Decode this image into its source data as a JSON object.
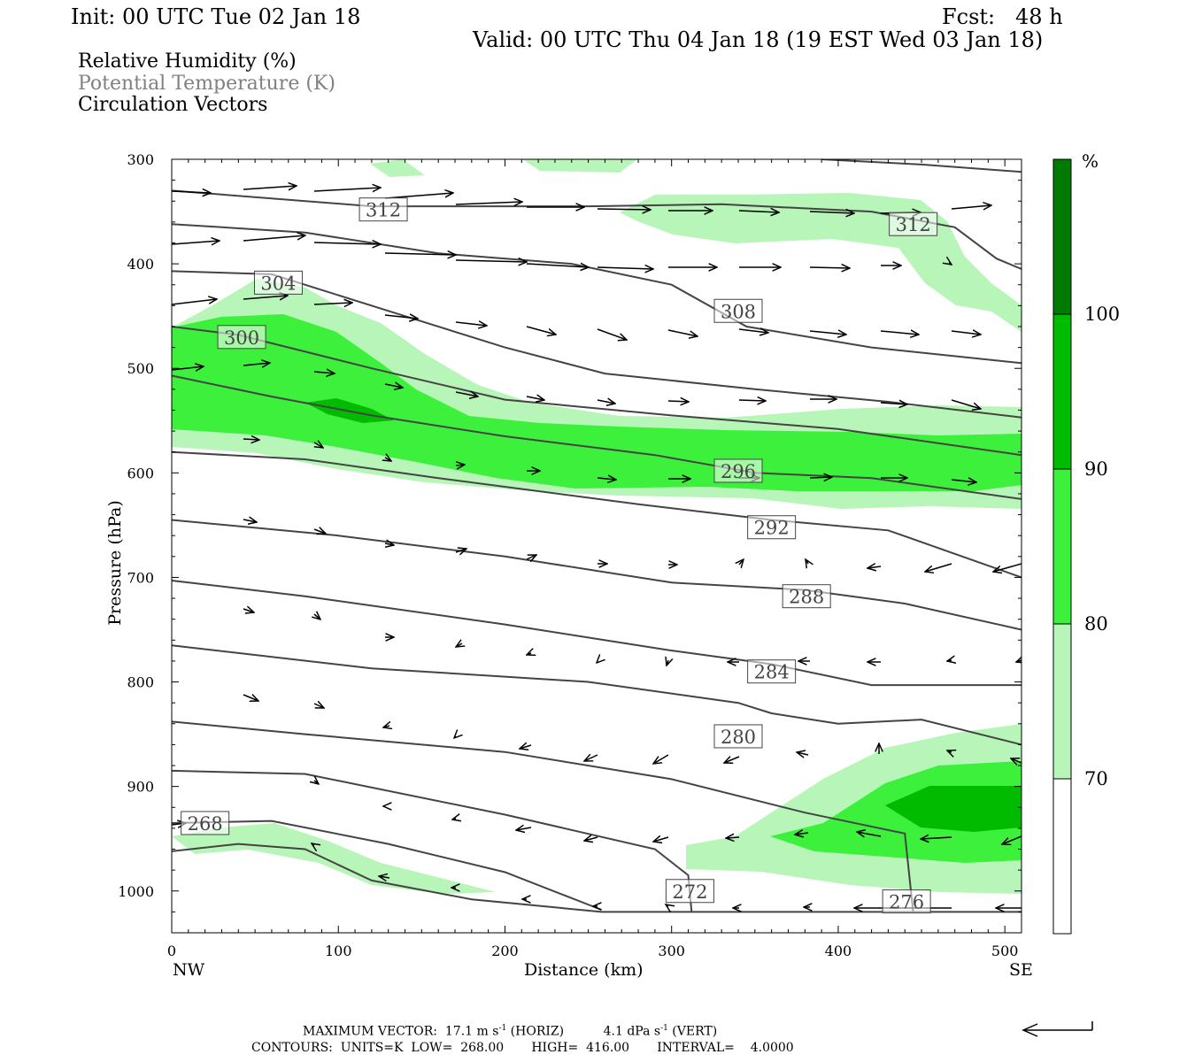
{
  "header": {
    "init": "Init: 00 UTC Tue 02 Jan 18",
    "fcst": "Fcst:   48 h",
    "valid": "Valid: 00 UTC Thu 04 Jan 18 (19 EST Wed 03 Jan 18)"
  },
  "legend": {
    "line1": "Relative Humidity (%)",
    "line2": "Potential Temperature (K)",
    "line3": "Circulation Vectors"
  },
  "colors": {
    "rh70": "#b8f5b8",
    "rh80": "#3cf03c",
    "rh90": "#00bb00",
    "rh100": "#007a00",
    "theta": "#444444",
    "legend_gray": "#808080"
  },
  "footer": {
    "maxvec_label": "MAXIMUM VECTOR:",
    "maxvec_h": "17.1 m s",
    "maxvec_h_unit": "(HORIZ)",
    "maxvec_v": "4.1 dPa s",
    "maxvec_v_unit": "(VERT)",
    "exp": "-1",
    "contours": "CONTOURS:  UNITS=K  LOW=  268.00       HIGH=  416.00       INTERVAL=    4.0000"
  },
  "chart_data": {
    "type": "cross-section",
    "xlabel": "Distance (km)",
    "ylabel": "Pressure (hPa)",
    "xlim": [
      0,
      510
    ],
    "ylim": [
      1040,
      300
    ],
    "x_ticks": [
      0,
      100,
      200,
      300,
      400,
      500
    ],
    "x_tick_labels": [
      "0",
      "100",
      "200",
      "300",
      "400",
      "500"
    ],
    "y_ticks": [
      300,
      400,
      500,
      600,
      700,
      800,
      900,
      1000
    ],
    "y_tick_labels": [
      "300",
      "400",
      "500",
      "600",
      "700",
      "800",
      "900",
      "1000"
    ],
    "x_end_labels": {
      "left": "NW",
      "right": "SE"
    },
    "colorbar": {
      "unit": "%",
      "levels": [
        "70",
        "80",
        "90",
        "100"
      ],
      "fills": [
        "#ffffff",
        "#b8f5b8",
        "#3cf03c",
        "#00bb00",
        "#007a00"
      ]
    },
    "theta_contours": [
      {
        "label": "312",
        "points": [
          [
            0,
            330
          ],
          [
            120,
            345
          ],
          [
            250,
            345
          ],
          [
            330,
            343
          ],
          [
            420,
            350
          ],
          [
            470,
            365
          ],
          [
            495,
            395
          ],
          [
            510,
            405
          ]
        ],
        "label_at": [
          127,
          348
        ]
      },
      {
        "label": "312",
        "points": [
          [
            390,
            300
          ],
          [
            450,
            305
          ],
          [
            510,
            312
          ]
        ],
        "label_at": [
          445,
          362
        ]
      },
      {
        "label": "308",
        "points": [
          [
            0,
            362
          ],
          [
            80,
            370
          ],
          [
            160,
            390
          ],
          [
            240,
            400
          ],
          [
            300,
            420
          ],
          [
            345,
            460
          ],
          [
            420,
            480
          ],
          [
            510,
            495
          ]
        ],
        "label_at": [
          340,
          445
        ]
      },
      {
        "label": "304",
        "points": [
          [
            0,
            407
          ],
          [
            60,
            410
          ],
          [
            140,
            450
          ],
          [
            200,
            480
          ],
          [
            260,
            505
          ],
          [
            350,
            520
          ],
          [
            430,
            532
          ],
          [
            510,
            547
          ]
        ],
        "label_at": [
          64,
          418
        ]
      },
      {
        "label": "300",
        "points": [
          [
            0,
            460
          ],
          [
            40,
            468
          ],
          [
            120,
            500
          ],
          [
            200,
            530
          ],
          [
            300,
            545
          ],
          [
            400,
            558
          ],
          [
            510,
            583
          ]
        ],
        "label_at": [
          42,
          470
        ]
      },
      {
        "label": "296",
        "points": [
          [
            0,
            507
          ],
          [
            60,
            527
          ],
          [
            120,
            545
          ],
          [
            200,
            565
          ],
          [
            290,
            583
          ],
          [
            350,
            600
          ],
          [
            420,
            605
          ],
          [
            510,
            625
          ]
        ],
        "label_at": [
          340,
          598
        ]
      },
      {
        "label": "292",
        "points": [
          [
            0,
            580
          ],
          [
            80,
            587
          ],
          [
            160,
            605
          ],
          [
            280,
            630
          ],
          [
            360,
            645
          ],
          [
            430,
            655
          ],
          [
            510,
            700
          ]
        ],
        "label_at": [
          360,
          652
        ]
      },
      {
        "label": "288",
        "points": [
          [
            0,
            645
          ],
          [
            100,
            660
          ],
          [
            200,
            680
          ],
          [
            300,
            705
          ],
          [
            380,
            712
          ],
          [
            440,
            725
          ],
          [
            510,
            750
          ]
        ],
        "label_at": [
          381,
          718
        ]
      },
      {
        "label": "284",
        "points": [
          [
            0,
            703
          ],
          [
            80,
            718
          ],
          [
            200,
            745
          ],
          [
            300,
            770
          ],
          [
            360,
            783
          ],
          [
            420,
            803
          ],
          [
            510,
            803
          ]
        ],
        "label_at": [
          360,
          790
        ]
      },
      {
        "label": "280",
        "points": [
          [
            0,
            765
          ],
          [
            120,
            787
          ],
          [
            250,
            800
          ],
          [
            340,
            820
          ],
          [
            360,
            830
          ],
          [
            400,
            840
          ],
          [
            450,
            836
          ],
          [
            510,
            860
          ]
        ],
        "label_at": [
          340,
          852
        ]
      },
      {
        "label": "276",
        "points": [
          [
            0,
            838
          ],
          [
            80,
            850
          ],
          [
            200,
            867
          ],
          [
            300,
            893
          ],
          [
            380,
            925
          ],
          [
            440,
            945
          ],
          [
            445,
            1020
          ]
        ],
        "label_at": [
          441,
          1010
        ]
      },
      {
        "label": "272",
        "points": [
          [
            0,
            885
          ],
          [
            80,
            888
          ],
          [
            200,
            927
          ],
          [
            290,
            960
          ],
          [
            310,
            985
          ],
          [
            312,
            1020
          ]
        ],
        "label_at": [
          311,
          1000
        ]
      },
      {
        "label": "268",
        "points": [
          [
            0,
            935
          ],
          [
            60,
            933
          ],
          [
            130,
            955
          ],
          [
            200,
            982
          ],
          [
            258,
            1018
          ]
        ],
        "label_at": [
          20,
          935
        ]
      },
      {
        "label": "",
        "points": [
          [
            0,
            962
          ],
          [
            40,
            955
          ],
          [
            80,
            960
          ],
          [
            120,
            990
          ],
          [
            180,
            1008
          ],
          [
            258,
            1020
          ],
          [
            510,
            1020
          ]
        ],
        "label_at": null
      }
    ]
  }
}
